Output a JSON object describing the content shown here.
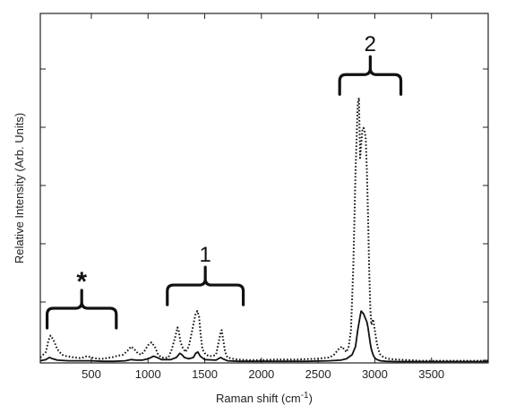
{
  "chart_data": {
    "type": "line",
    "title": "",
    "xlabel": "Raman shift (cm",
    "xlabel_sup": "-1",
    "xlabel_tail": ")",
    "ylabel": "Relative Intensity (Arb. Units)",
    "xlim": [
      50,
      4000
    ],
    "ylim": [
      0,
      1
    ],
    "xticks": [
      500,
      1000,
      1500,
      2000,
      2500,
      3000,
      3500
    ],
    "y_tick_labels_shown": false,
    "grid": false,
    "legend": "none",
    "series": [
      {
        "style": "dotted",
        "color": "#111111",
        "x": [
          50,
          100,
          120,
          140,
          165,
          200,
          240,
          280,
          350,
          400,
          430,
          460,
          500,
          560,
          600,
          640,
          680,
          720,
          780,
          820,
          850,
          880,
          910,
          940,
          970,
          1000,
          1030,
          1060,
          1090,
          1120,
          1150,
          1180,
          1210,
          1240,
          1260,
          1270,
          1285,
          1300,
          1315,
          1330,
          1360,
          1390,
          1420,
          1435,
          1450,
          1465,
          1480,
          1510,
          1540,
          1570,
          1600,
          1620,
          1640,
          1650,
          1665,
          1680,
          1700,
          1750,
          1800,
          1900,
          2000,
          2100,
          2200,
          2300,
          2400,
          2500,
          2550,
          2600,
          2640,
          2680,
          2710,
          2730,
          2750,
          2770,
          2790,
          2810,
          2830,
          2850,
          2860,
          2870,
          2880,
          2890,
          2900,
          2910,
          2920,
          2930,
          2940,
          2950,
          2960,
          2970,
          2985,
          3000,
          3015,
          3030,
          3050,
          3080,
          3120,
          3200,
          3300,
          3400,
          3500,
          3600,
          3800,
          4000
        ],
        "y": [
          0.02,
          0.04,
          0.08,
          0.1,
          0.085,
          0.05,
          0.03,
          0.025,
          0.02,
          0.018,
          0.02,
          0.025,
          0.02,
          0.015,
          0.015,
          0.018,
          0.02,
          0.025,
          0.03,
          0.045,
          0.06,
          0.05,
          0.035,
          0.03,
          0.045,
          0.065,
          0.075,
          0.06,
          0.03,
          0.02,
          0.018,
          0.02,
          0.05,
          0.095,
          0.13,
          0.12,
          0.08,
          0.06,
          0.05,
          0.04,
          0.06,
          0.12,
          0.18,
          0.19,
          0.17,
          0.1,
          0.05,
          0.03,
          0.025,
          0.025,
          0.03,
          0.07,
          0.11,
          0.12,
          0.08,
          0.04,
          0.02,
          0.015,
          0.012,
          0.01,
          0.01,
          0.012,
          0.012,
          0.012,
          0.014,
          0.015,
          0.018,
          0.02,
          0.03,
          0.05,
          0.06,
          0.05,
          0.04,
          0.06,
          0.12,
          0.35,
          0.7,
          0.95,
          0.97,
          0.75,
          0.8,
          0.85,
          0.86,
          0.85,
          0.82,
          0.7,
          0.55,
          0.35,
          0.2,
          0.14,
          0.16,
          0.12,
          0.08,
          0.05,
          0.03,
          0.02,
          0.015,
          0.012,
          0.01,
          0.008,
          0.008,
          0.008,
          0.008,
          0.008
        ]
      },
      {
        "style": "solid",
        "color": "#111111",
        "x": [
          50,
          100,
          130,
          160,
          200,
          300,
          400,
          500,
          600,
          700,
          800,
          850,
          900,
          950,
          1000,
          1050,
          1080,
          1120,
          1200,
          1250,
          1280,
          1300,
          1320,
          1360,
          1400,
          1420,
          1440,
          1460,
          1500,
          1600,
          1640,
          1660,
          1700,
          1800,
          2000,
          2200,
          2400,
          2600,
          2700,
          2750,
          2800,
          2830,
          2850,
          2870,
          2880,
          2890,
          2900,
          2910,
          2920,
          2930,
          2940,
          2950,
          2960,
          2970,
          2985,
          3000,
          3020,
          3050,
          3100,
          3200,
          3400,
          3600,
          4000
        ],
        "y": [
          0.008,
          0.012,
          0.02,
          0.015,
          0.01,
          0.008,
          0.008,
          0.008,
          0.006,
          0.006,
          0.008,
          0.012,
          0.01,
          0.01,
          0.015,
          0.025,
          0.02,
          0.012,
          0.012,
          0.02,
          0.035,
          0.03,
          0.02,
          0.015,
          0.02,
          0.035,
          0.04,
          0.025,
          0.012,
          0.01,
          0.02,
          0.015,
          0.008,
          0.006,
          0.006,
          0.006,
          0.006,
          0.008,
          0.01,
          0.015,
          0.03,
          0.06,
          0.12,
          0.17,
          0.19,
          0.185,
          0.18,
          0.17,
          0.16,
          0.15,
          0.13,
          0.1,
          0.07,
          0.05,
          0.03,
          0.018,
          0.012,
          0.008,
          0.006,
          0.005,
          0.005,
          0.005,
          0.005
        ]
      }
    ],
    "annotations": [
      {
        "label": "*",
        "bracket_x": [
          110,
          720
        ],
        "bracket_y": 0.2
      },
      {
        "label": "1",
        "bracket_x": [
          1170,
          1840
        ],
        "bracket_y": 0.285
      },
      {
        "label": "2",
        "bracket_x": [
          2690,
          3230
        ],
        "bracket_y": 1.055
      }
    ]
  }
}
